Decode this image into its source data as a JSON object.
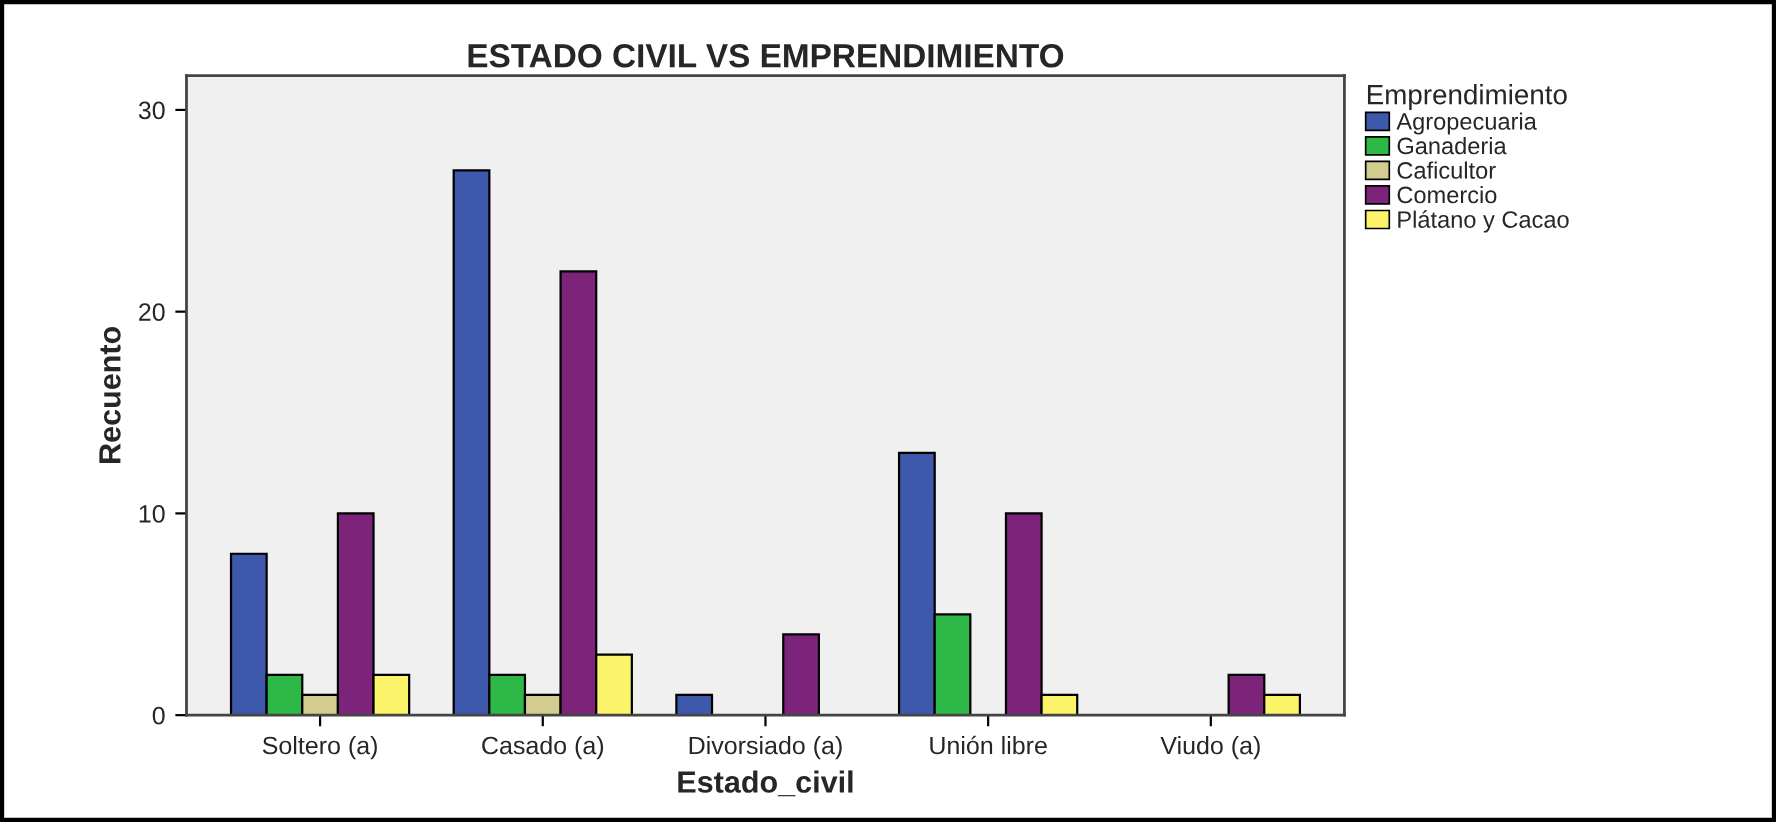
{
  "chart_data": {
    "type": "bar",
    "title": "ESTADO CIVIL VS EMPRENDIMIENTO",
    "xlabel": "Estado_civil",
    "ylabel": "Recuento",
    "legend_title": "Emprendimiento",
    "categories": [
      "Soltero (a)",
      "Casado (a)",
      "Divorsiado (a)",
      "Unión libre",
      "Viudo (a)"
    ],
    "series": [
      {
        "name": "Agropecuaria",
        "color": "#3e58ac",
        "values": [
          8,
          27,
          1,
          13,
          null
        ]
      },
      {
        "name": "Ganaderia",
        "color": "#2eb848",
        "values": [
          2,
          2,
          null,
          5,
          null
        ]
      },
      {
        "name": "Caficultor",
        "color": "#d2cc8e",
        "values": [
          1,
          1,
          null,
          null,
          null
        ]
      },
      {
        "name": "Comercio",
        "color": "#7b2479",
        "values": [
          10,
          22,
          4,
          10,
          2
        ]
      },
      {
        "name": "Plátano y Cacao",
        "color": "#fbf46b",
        "values": [
          2,
          3,
          null,
          1,
          1
        ]
      }
    ],
    "ylim": [
      0,
      31.7
    ],
    "yticks": [
      0,
      10,
      20,
      30
    ],
    "grid": false,
    "legend": "top right"
  }
}
